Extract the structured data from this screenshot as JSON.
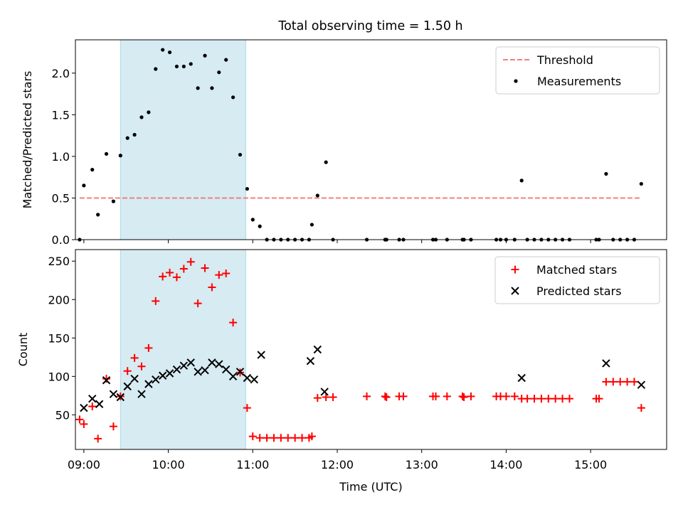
{
  "figure": {
    "title": "Total observing time = 1.50 h"
  },
  "chart_data": [
    {
      "type": "scatter",
      "ylabel": "Matched/Predicted stars",
      "xlabel": "",
      "x_unit": "hours UTC",
      "xlim": [
        "08:54",
        "15:54"
      ],
      "ylim": [
        0,
        2.4
      ],
      "yticks": [
        "0.0",
        "0.5",
        "1.0",
        "1.5",
        "2.0"
      ],
      "shaded_interval": [
        "09:26",
        "10:55"
      ],
      "legend": {
        "position": "top-right",
        "entries": [
          "Threshold",
          "Measurements"
        ]
      },
      "threshold": {
        "name": "Threshold",
        "value": 0.5,
        "x_range": [
          "08:57",
          "15:36"
        ],
        "color": "#f08080",
        "style": "dashed"
      },
      "series": [
        {
          "name": "Measurements",
          "color": "#000000",
          "marker": "dot",
          "points": [
            [
              "08:57",
              0.0
            ],
            [
              "09:00",
              0.65
            ],
            [
              "09:06",
              0.84
            ],
            [
              "09:10",
              0.3
            ],
            [
              "09:16",
              1.03
            ],
            [
              "09:21",
              0.46
            ],
            [
              "09:26",
              1.01
            ],
            [
              "09:31",
              1.22
            ],
            [
              "09:36",
              1.26
            ],
            [
              "09:41",
              1.47
            ],
            [
              "09:46",
              1.53
            ],
            [
              "09:51",
              2.05
            ],
            [
              "09:56",
              2.28
            ],
            [
              "10:01",
              2.25
            ],
            [
              "10:06",
              2.08
            ],
            [
              "10:11",
              2.08
            ],
            [
              "10:16",
              2.11
            ],
            [
              "10:21",
              1.82
            ],
            [
              "10:26",
              2.21
            ],
            [
              "10:31",
              1.82
            ],
            [
              "10:36",
              2.01
            ],
            [
              "10:41",
              2.16
            ],
            [
              "10:46",
              1.71
            ],
            [
              "10:51",
              1.02
            ],
            [
              "10:56",
              0.61
            ],
            [
              "11:00",
              0.24
            ],
            [
              "11:05",
              0.16
            ],
            [
              "11:10",
              0.0
            ],
            [
              "11:15",
              0.0
            ],
            [
              "11:20",
              0.0
            ],
            [
              "11:25",
              0.0
            ],
            [
              "11:30",
              0.0
            ],
            [
              "11:35",
              0.0
            ],
            [
              "11:40",
              0.0
            ],
            [
              "11:42",
              0.18
            ],
            [
              "11:46",
              0.53
            ],
            [
              "11:52",
              0.93
            ],
            [
              "11:57",
              0.0
            ],
            [
              "12:21",
              0.0
            ],
            [
              "12:34",
              0.0
            ],
            [
              "12:35",
              0.0
            ],
            [
              "12:44",
              0.0
            ],
            [
              "12:47",
              0.0
            ],
            [
              "13:08",
              0.0
            ],
            [
              "13:10",
              0.0
            ],
            [
              "13:18",
              0.0
            ],
            [
              "13:29",
              0.0
            ],
            [
              "13:30",
              0.0
            ],
            [
              "13:35",
              0.0
            ],
            [
              "13:53",
              0.0
            ],
            [
              "13:56",
              0.0
            ],
            [
              "14:00",
              0.0
            ],
            [
              "14:06",
              0.0
            ],
            [
              "14:11",
              0.71
            ],
            [
              "14:15",
              0.0
            ],
            [
              "14:20",
              0.0
            ],
            [
              "14:25",
              0.0
            ],
            [
              "14:30",
              0.0
            ],
            [
              "14:35",
              0.0
            ],
            [
              "14:40",
              0.0
            ],
            [
              "14:45",
              0.0
            ],
            [
              "15:04",
              0.0
            ],
            [
              "15:06",
              0.0
            ],
            [
              "15:11",
              0.79
            ],
            [
              "15:16",
              0.0
            ],
            [
              "15:21",
              0.0
            ],
            [
              "15:26",
              0.0
            ],
            [
              "15:31",
              0.0
            ],
            [
              "15:36",
              0.67
            ]
          ]
        }
      ]
    },
    {
      "type": "scatter",
      "ylabel": "Count",
      "xlabel": "Time (UTC)",
      "x_unit": "hours UTC",
      "xlim": [
        "08:54",
        "15:54"
      ],
      "ylim": [
        5,
        265
      ],
      "yticks": [
        "50",
        "100",
        "150",
        "200",
        "250"
      ],
      "xticks": [
        "09:00",
        "10:00",
        "11:00",
        "12:00",
        "13:00",
        "14:00",
        "15:00"
      ],
      "shaded_interval": [
        "09:26",
        "10:55"
      ],
      "legend": {
        "position": "top-right",
        "entries": [
          "Matched stars",
          "Predicted stars"
        ]
      },
      "series": [
        {
          "name": "Matched stars",
          "color": "#ff0000",
          "marker": "plus",
          "points": [
            [
              "08:57",
              44
            ],
            [
              "09:00",
              38
            ],
            [
              "09:06",
              61
            ],
            [
              "09:10",
              19
            ],
            [
              "09:16",
              97
            ],
            [
              "09:21",
              35
            ],
            [
              "09:26",
              74
            ],
            [
              "09:31",
              107
            ],
            [
              "09:36",
              124
            ],
            [
              "09:41",
              113
            ],
            [
              "09:46",
              137
            ],
            [
              "09:51",
              198
            ],
            [
              "09:56",
              230
            ],
            [
              "10:01",
              235
            ],
            [
              "10:06",
              229
            ],
            [
              "10:11",
              240
            ],
            [
              "10:16",
              249
            ],
            [
              "10:21",
              195
            ],
            [
              "10:26",
              241
            ],
            [
              "10:31",
              216
            ],
            [
              "10:36",
              232
            ],
            [
              "10:41",
              234
            ],
            [
              "10:46",
              170
            ],
            [
              "10:51",
              105
            ],
            [
              "10:56",
              59
            ],
            [
              "11:00",
              22
            ],
            [
              "11:05",
              20
            ],
            [
              "11:10",
              20
            ],
            [
              "11:15",
              20
            ],
            [
              "11:20",
              20
            ],
            [
              "11:25",
              20
            ],
            [
              "11:30",
              20
            ],
            [
              "11:35",
              20
            ],
            [
              "11:40",
              20
            ],
            [
              "11:42",
              22
            ],
            [
              "11:46",
              72
            ],
            [
              "11:52",
              73
            ],
            [
              "11:57",
              73
            ],
            [
              "12:21",
              74
            ],
            [
              "12:34",
              74
            ],
            [
              "12:35",
              73
            ],
            [
              "12:44",
              74
            ],
            [
              "12:47",
              74
            ],
            [
              "13:08",
              74
            ],
            [
              "13:10",
              74
            ],
            [
              "13:18",
              74
            ],
            [
              "13:29",
              74
            ],
            [
              "13:30",
              73
            ],
            [
              "13:35",
              74
            ],
            [
              "13:53",
              74
            ],
            [
              "13:56",
              74
            ],
            [
              "14:00",
              74
            ],
            [
              "14:06",
              74
            ],
            [
              "14:11",
              71
            ],
            [
              "14:15",
              71
            ],
            [
              "14:20",
              71
            ],
            [
              "14:25",
              71
            ],
            [
              "14:30",
              71
            ],
            [
              "14:35",
              71
            ],
            [
              "14:40",
              71
            ],
            [
              "14:45",
              71
            ],
            [
              "15:04",
              71
            ],
            [
              "15:06",
              71
            ],
            [
              "15:11",
              93
            ],
            [
              "15:16",
              93
            ],
            [
              "15:21",
              93
            ],
            [
              "15:26",
              93
            ],
            [
              "15:31",
              93
            ],
            [
              "15:36",
              59
            ]
          ]
        },
        {
          "name": "Predicted stars",
          "color": "#000000",
          "marker": "x",
          "points": [
            [
              "09:00",
              59
            ],
            [
              "09:06",
              71
            ],
            [
              "09:11",
              64
            ],
            [
              "09:16",
              95
            ],
            [
              "09:21",
              77
            ],
            [
              "09:26",
              73
            ],
            [
              "09:31",
              87
            ],
            [
              "09:36",
              97
            ],
            [
              "09:41",
              77
            ],
            [
              "09:46",
              90
            ],
            [
              "09:51",
              96
            ],
            [
              "09:56",
              101
            ],
            [
              "10:01",
              104
            ],
            [
              "10:06",
              109
            ],
            [
              "10:11",
              114
            ],
            [
              "10:16",
              118
            ],
            [
              "10:21",
              106
            ],
            [
              "10:26",
              108
            ],
            [
              "10:31",
              118
            ],
            [
              "10:36",
              116
            ],
            [
              "10:41",
              109
            ],
            [
              "10:46",
              100
            ],
            [
              "10:51",
              106
            ],
            [
              "10:56",
              98
            ],
            [
              "11:01",
              96
            ],
            [
              "11:06",
              128
            ],
            [
              "11:41",
              120
            ],
            [
              "11:46",
              135
            ],
            [
              "11:51",
              80
            ],
            [
              "14:11",
              98
            ],
            [
              "15:11",
              117
            ],
            [
              "15:36",
              89
            ]
          ]
        }
      ]
    }
  ]
}
